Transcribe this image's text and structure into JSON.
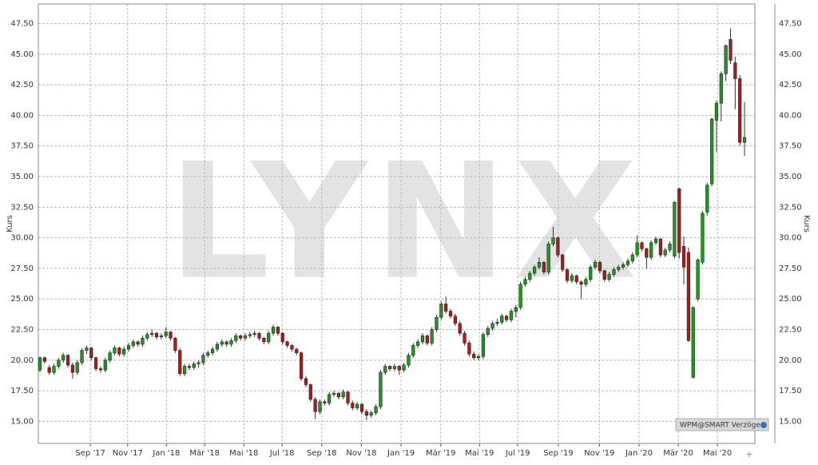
{
  "chart_data": {
    "type": "candlestick",
    "y_label": "Kurs",
    "watermark": "LYNX",
    "badge": "WPM@SMART Verzögert",
    "up_color": "#1e9a1e",
    "down_color": "#b01a1a",
    "grid": true,
    "ylim": [
      13.2,
      49.1
    ],
    "yticks": [
      {
        "value": 15,
        "label": "15.00"
      },
      {
        "value": 17.5,
        "label": "17.50"
      },
      {
        "value": 20,
        "label": "20.00"
      },
      {
        "value": 22.5,
        "label": "22.50"
      },
      {
        "value": 25,
        "label": "25.00"
      },
      {
        "value": 27.5,
        "label": "27.50"
      },
      {
        "value": 30,
        "label": "30.00"
      },
      {
        "value": 32.5,
        "label": "32.50"
      },
      {
        "value": 35,
        "label": "35.00"
      },
      {
        "value": 37.5,
        "label": "37.50"
      },
      {
        "value": 40,
        "label": "40.00"
      },
      {
        "value": 42.5,
        "label": "42.50"
      },
      {
        "value": 45,
        "label": "45.00"
      },
      {
        "value": 47.5,
        "label": "47.50"
      }
    ],
    "xticks": [
      {
        "value": 10.8,
        "label": "Sep '17"
      },
      {
        "value": 18.8,
        "label": "Nov '17"
      },
      {
        "value": 27.1,
        "label": "Jan '18"
      },
      {
        "value": 35.3,
        "label": "Mär '18"
      },
      {
        "value": 43.7,
        "label": "Mai '18"
      },
      {
        "value": 51.9,
        "label": "Jul '18"
      },
      {
        "value": 60.4,
        "label": "Sep '18"
      },
      {
        "value": 68.9,
        "label": "Nov '18"
      },
      {
        "value": 77.4,
        "label": "Jan '19"
      },
      {
        "value": 85.9,
        "label": "Mär '19"
      },
      {
        "value": 94.2,
        "label": "Mai '19"
      },
      {
        "value": 102.4,
        "label": "Jul '19"
      },
      {
        "value": 111.1,
        "label": "Sep '19"
      },
      {
        "value": 119.9,
        "label": "Nov '19"
      },
      {
        "value": 128.4,
        "label": "Jan '20"
      },
      {
        "value": 136.8,
        "label": "Mär '20"
      },
      {
        "value": 145.2,
        "label": "Mai '20"
      }
    ],
    "ohlc": [
      [
        19.2,
        20.3,
        19.0,
        20.2
      ],
      [
        20.2,
        20.3,
        19.7,
        19.9
      ],
      [
        19.4,
        19.6,
        18.8,
        19.0
      ],
      [
        19.0,
        19.7,
        18.8,
        19.5
      ],
      [
        19.5,
        20.2,
        19.3,
        20.0
      ],
      [
        20.0,
        20.6,
        19.8,
        20.4
      ],
      [
        20.4,
        20.5,
        19.4,
        19.6
      ],
      [
        19.6,
        19.8,
        18.5,
        19.0
      ],
      [
        19.0,
        20.0,
        18.8,
        19.8
      ],
      [
        19.8,
        21.0,
        19.6,
        20.8
      ],
      [
        20.8,
        21.2,
        20.5,
        21.0
      ],
      [
        21.0,
        21.1,
        20.0,
        20.2
      ],
      [
        20.2,
        20.3,
        19.1,
        19.3
      ],
      [
        19.3,
        19.5,
        19.0,
        19.2
      ],
      [
        19.2,
        20.2,
        19.0,
        20.0
      ],
      [
        20.0,
        20.8,
        19.8,
        20.6
      ],
      [
        20.6,
        21.2,
        20.4,
        21.0
      ],
      [
        21.0,
        21.1,
        20.3,
        20.5
      ],
      [
        20.5,
        21.1,
        20.3,
        20.9
      ],
      [
        20.9,
        21.4,
        20.7,
        21.2
      ],
      [
        21.2,
        21.7,
        21.0,
        21.5
      ],
      [
        21.5,
        21.6,
        21.1,
        21.3
      ],
      [
        21.3,
        22.0,
        21.1,
        21.8
      ],
      [
        21.8,
        22.3,
        21.6,
        22.1
      ],
      [
        22.1,
        22.5,
        21.9,
        22.2
      ],
      [
        22.2,
        22.3,
        21.7,
        21.9
      ],
      [
        21.9,
        22.2,
        21.7,
        22.0
      ],
      [
        22.0,
        22.7,
        21.8,
        22.3
      ],
      [
        22.3,
        22.4,
        21.6,
        21.8
      ],
      [
        21.8,
        21.9,
        20.6,
        20.8
      ],
      [
        20.8,
        21.0,
        18.7,
        18.9
      ],
      [
        18.9,
        19.7,
        18.7,
        19.5
      ],
      [
        19.5,
        19.7,
        19.2,
        19.4
      ],
      [
        19.4,
        19.9,
        19.2,
        19.7
      ],
      [
        19.7,
        20.0,
        19.4,
        19.8
      ],
      [
        19.8,
        20.6,
        19.6,
        20.4
      ],
      [
        20.4,
        20.8,
        20.2,
        20.6
      ],
      [
        20.6,
        21.1,
        20.4,
        20.9
      ],
      [
        20.9,
        21.5,
        20.7,
        21.3
      ],
      [
        21.3,
        21.7,
        21.1,
        21.5
      ],
      [
        21.5,
        21.6,
        21.1,
        21.3
      ],
      [
        21.3,
        21.8,
        21.1,
        21.6
      ],
      [
        21.6,
        22.2,
        21.4,
        22.0
      ],
      [
        22.0,
        22.1,
        21.6,
        21.8
      ],
      [
        21.8,
        22.2,
        21.6,
        22.0
      ],
      [
        22.0,
        22.3,
        21.8,
        22.1
      ],
      [
        22.1,
        22.4,
        21.9,
        22.2
      ],
      [
        22.2,
        22.3,
        21.6,
        21.8
      ],
      [
        21.8,
        21.9,
        21.3,
        21.5
      ],
      [
        21.5,
        22.4,
        21.3,
        22.2
      ],
      [
        22.2,
        22.9,
        22.0,
        22.7
      ],
      [
        22.7,
        22.8,
        22.0,
        22.2
      ],
      [
        22.2,
        22.3,
        21.3,
        21.5
      ],
      [
        21.5,
        21.6,
        21.0,
        21.2
      ],
      [
        21.2,
        21.3,
        20.7,
        20.9
      ],
      [
        20.9,
        21.0,
        20.4,
        20.6
      ],
      [
        20.6,
        20.7,
        18.3,
        18.5
      ],
      [
        18.5,
        18.7,
        17.8,
        18.0
      ],
      [
        18.0,
        18.1,
        16.6,
        16.8
      ],
      [
        16.8,
        17.0,
        15.2,
        15.8
      ],
      [
        15.8,
        16.8,
        15.6,
        16.6
      ],
      [
        16.6,
        16.8,
        16.3,
        16.5
      ],
      [
        16.5,
        17.4,
        16.3,
        17.2
      ],
      [
        17.2,
        17.5,
        17.0,
        17.3
      ],
      [
        17.3,
        17.4,
        16.8,
        17.0
      ],
      [
        17.0,
        17.6,
        16.8,
        17.4
      ],
      [
        17.4,
        17.5,
        16.3,
        16.5
      ],
      [
        16.5,
        16.7,
        15.9,
        16.1
      ],
      [
        16.1,
        16.6,
        15.9,
        16.4
      ],
      [
        16.4,
        16.5,
        15.6,
        15.8
      ],
      [
        15.8,
        16.0,
        15.1,
        15.5
      ],
      [
        15.5,
        15.9,
        15.3,
        15.7
      ],
      [
        15.7,
        16.4,
        15.5,
        16.2
      ],
      [
        16.2,
        19.2,
        16.0,
        19.0
      ],
      [
        19.0,
        19.7,
        18.8,
        19.5
      ],
      [
        19.5,
        19.6,
        19.1,
        19.3
      ],
      [
        19.3,
        19.7,
        19.1,
        19.5
      ],
      [
        19.5,
        19.6,
        18.8,
        19.2
      ],
      [
        19.2,
        19.8,
        19.0,
        19.6
      ],
      [
        19.6,
        20.6,
        19.4,
        20.4
      ],
      [
        20.4,
        21.4,
        20.2,
        21.2
      ],
      [
        21.2,
        21.7,
        21.0,
        21.5
      ],
      [
        21.5,
        22.2,
        21.3,
        22.0
      ],
      [
        22.0,
        22.1,
        21.2,
        21.4
      ],
      [
        21.4,
        22.7,
        21.2,
        22.5
      ],
      [
        22.5,
        23.7,
        22.3,
        23.5
      ],
      [
        23.5,
        24.8,
        23.3,
        24.6
      ],
      [
        24.6,
        25.2,
        23.8,
        24.0
      ],
      [
        24.0,
        24.2,
        23.4,
        23.6
      ],
      [
        23.6,
        23.8,
        22.8,
        23.0
      ],
      [
        23.0,
        23.2,
        22.0,
        22.2
      ],
      [
        22.2,
        22.4,
        21.2,
        21.4
      ],
      [
        21.4,
        21.6,
        20.3,
        20.5
      ],
      [
        20.5,
        20.7,
        20.0,
        20.2
      ],
      [
        20.2,
        20.5,
        20.0,
        20.3
      ],
      [
        20.3,
        22.3,
        20.1,
        22.1
      ],
      [
        22.1,
        22.8,
        21.9,
        22.6
      ],
      [
        22.6,
        23.2,
        22.4,
        23.0
      ],
      [
        23.0,
        23.4,
        22.8,
        23.1
      ],
      [
        23.1,
        23.8,
        22.9,
        23.6
      ],
      [
        23.6,
        23.7,
        23.1,
        23.3
      ],
      [
        23.3,
        24.2,
        23.1,
        24.0
      ],
      [
        24.0,
        24.5,
        23.5,
        24.3
      ],
      [
        24.3,
        26.4,
        24.1,
        26.2
      ],
      [
        26.2,
        26.8,
        26.0,
        26.6
      ],
      [
        26.6,
        27.3,
        26.4,
        27.1
      ],
      [
        27.1,
        27.8,
        26.9,
        27.6
      ],
      [
        27.6,
        28.4,
        27.4,
        28.0
      ],
      [
        28.0,
        28.1,
        27.0,
        27.2
      ],
      [
        27.2,
        29.7,
        27.0,
        29.5
      ],
      [
        29.5,
        30.9,
        29.3,
        30.0
      ],
      [
        30.0,
        30.1,
        28.4,
        28.6
      ],
      [
        28.6,
        28.7,
        27.2,
        27.4
      ],
      [
        27.4,
        27.5,
        26.3,
        26.5
      ],
      [
        26.5,
        27.1,
        26.3,
        26.9
      ],
      [
        26.9,
        27.0,
        26.2,
        26.4
      ],
      [
        26.4,
        26.5,
        25.0,
        26.2
      ],
      [
        26.2,
        26.8,
        26.0,
        26.6
      ],
      [
        26.6,
        27.8,
        26.4,
        27.6
      ],
      [
        27.6,
        28.2,
        27.4,
        28.0
      ],
      [
        28.0,
        28.1,
        27.1,
        27.3
      ],
      [
        27.3,
        27.4,
        26.4,
        26.6
      ],
      [
        26.6,
        27.2,
        26.4,
        27.0
      ],
      [
        27.0,
        27.6,
        26.8,
        27.4
      ],
      [
        27.4,
        27.8,
        27.2,
        27.6
      ],
      [
        27.6,
        28.0,
        27.4,
        27.8
      ],
      [
        27.8,
        28.3,
        27.6,
        28.1
      ],
      [
        28.1,
        28.8,
        27.9,
        28.6
      ],
      [
        28.6,
        30.2,
        28.4,
        29.6
      ],
      [
        29.6,
        29.7,
        28.9,
        29.1
      ],
      [
        29.1,
        29.2,
        27.5,
        28.4
      ],
      [
        28.4,
        29.8,
        28.2,
        29.6
      ],
      [
        29.6,
        30.1,
        29.4,
        29.9
      ],
      [
        29.9,
        30.0,
        28.4,
        28.6
      ],
      [
        28.6,
        29.2,
        28.4,
        29.0
      ],
      [
        29.0,
        29.7,
        28.8,
        29.5
      ],
      [
        28.5,
        33.0,
        28.3,
        32.9
      ],
      [
        34.0,
        34.1,
        28.3,
        28.8
      ],
      [
        29.3,
        30.1,
        26.2,
        27.6
      ],
      [
        28.8,
        29.2,
        21.5,
        21.6
      ],
      [
        18.6,
        24.4,
        18.5,
        24.3
      ],
      [
        25.0,
        28.3,
        24.8,
        28.2
      ],
      [
        28.0,
        32.2,
        27.8,
        32.0
      ],
      [
        32.1,
        34.5,
        31.8,
        34.3
      ],
      [
        34.4,
        39.8,
        34.2,
        39.7
      ],
      [
        39.6,
        41.2,
        37.0,
        41.0
      ],
      [
        41.0,
        43.6,
        39.5,
        43.4
      ],
      [
        43.4,
        45.8,
        42.8,
        45.7
      ],
      [
        46.2,
        47.1,
        44.2,
        44.5
      ],
      [
        44.3,
        44.8,
        40.5,
        43.0
      ],
      [
        43.0,
        43.3,
        37.5,
        37.8
      ],
      [
        37.8,
        41.1,
        36.7,
        38.2
      ]
    ]
  }
}
